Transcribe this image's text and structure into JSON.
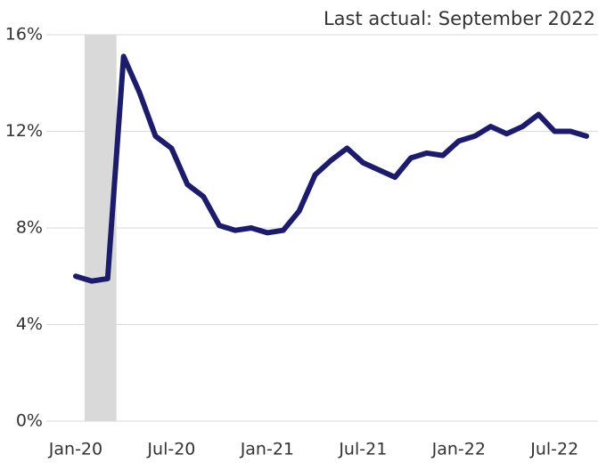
{
  "chart_data": {
    "type": "line",
    "annotation": "Last actual: September 2022",
    "categories": [
      "Jan-20",
      null,
      null,
      null,
      null,
      null,
      "Jul-20",
      null,
      null,
      null,
      null,
      null,
      "Jan-21",
      null,
      null,
      null,
      null,
      null,
      "Jul-21",
      null,
      null,
      null,
      null,
      null,
      "Jan-22",
      null,
      null,
      null,
      null,
      null,
      "Jul-22",
      null,
      null
    ],
    "series": [
      {
        "color": "#1c1c6b",
        "values": [
          6.0,
          5.8,
          5.9,
          15.1,
          13.6,
          11.8,
          11.3,
          9.8,
          9.3,
          8.1,
          7.9,
          8.0,
          7.8,
          7.9,
          8.7,
          10.2,
          10.8,
          11.3,
          10.7,
          10.4,
          10.1,
          10.9,
          11.1,
          11.0,
          11.6,
          11.8,
          12.2,
          11.9,
          12.2,
          12.7,
          12.0,
          12.0,
          11.8
        ]
      }
    ],
    "shade": {
      "from": 1,
      "to": 3,
      "color": "#d9d9d9"
    },
    "ylim": [
      0,
      16
    ],
    "yticks": [
      {
        "value": 0,
        "label": "0%"
      },
      {
        "value": 4,
        "label": "4%"
      },
      {
        "value": 8,
        "label": "8%"
      },
      {
        "value": 12,
        "label": "12%"
      },
      {
        "value": 16,
        "label": "16%"
      }
    ],
    "grid": true
  }
}
